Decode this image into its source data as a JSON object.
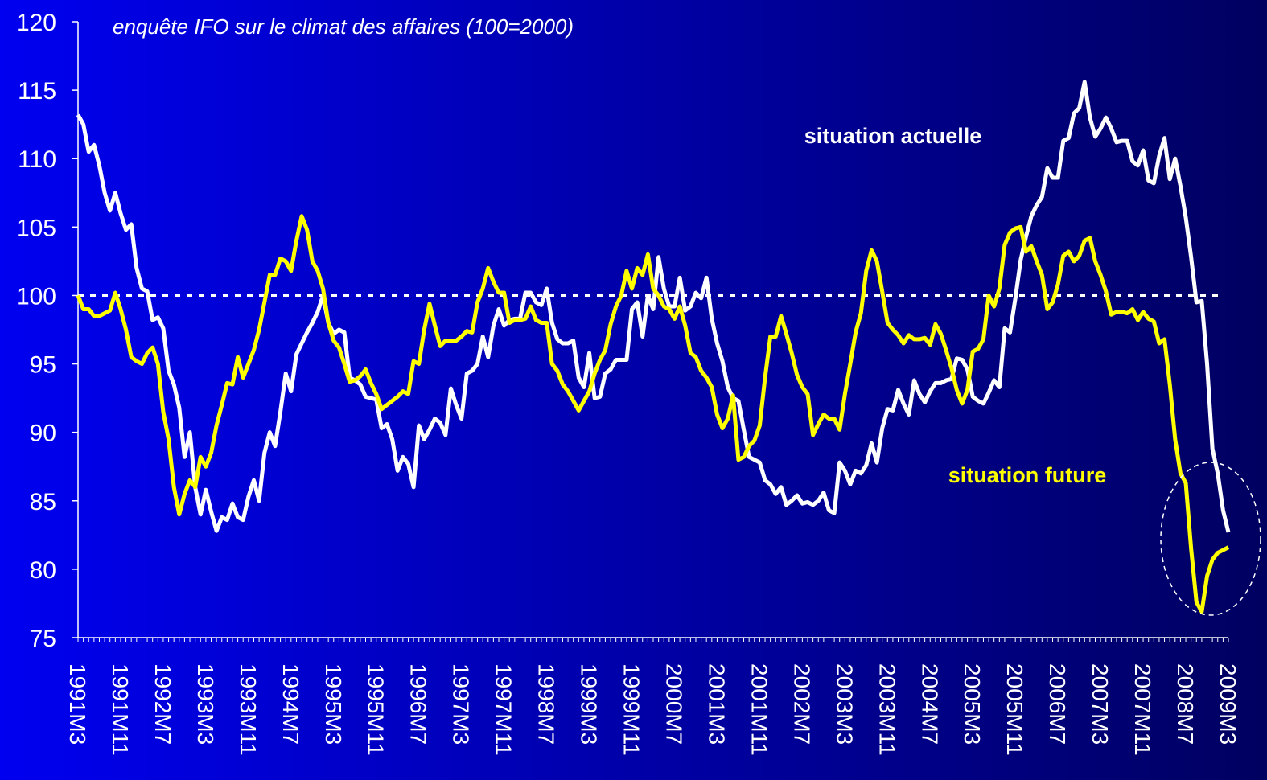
{
  "chart_data": {
    "type": "line",
    "title": "enquête IFO sur le climat des affaires (100=2000)",
    "categories": [
      "1991M3",
      null,
      null,
      null,
      null,
      null,
      null,
      null,
      "1991M11",
      null,
      null,
      null,
      null,
      null,
      null,
      null,
      "1992M7",
      null,
      null,
      null,
      null,
      null,
      null,
      null,
      "1993M3",
      null,
      null,
      null,
      null,
      null,
      null,
      null,
      "1993M11",
      null,
      null,
      null,
      null,
      null,
      null,
      null,
      "1994M7",
      null,
      null,
      null,
      null,
      null,
      null,
      null,
      "1995M3",
      null,
      null,
      null,
      null,
      null,
      null,
      null,
      "1995M11",
      null,
      null,
      null,
      null,
      null,
      null,
      null,
      "1996M7",
      null,
      null,
      null,
      null,
      null,
      null,
      null,
      "1997M3",
      null,
      null,
      null,
      null,
      null,
      null,
      null,
      "1997M11",
      null,
      null,
      null,
      null,
      null,
      null,
      null,
      "1998M7",
      null,
      null,
      null,
      null,
      null,
      null,
      null,
      "1999M3",
      null,
      null,
      null,
      null,
      null,
      null,
      null,
      "1999M11",
      null,
      null,
      null,
      null,
      null,
      null,
      null,
      "2000M7",
      null,
      null,
      null,
      null,
      null,
      null,
      null,
      "2001M3",
      null,
      null,
      null,
      null,
      null,
      null,
      null,
      "2001M11",
      null,
      null,
      null,
      null,
      null,
      null,
      null,
      "2002M7",
      null,
      null,
      null,
      null,
      null,
      null,
      null,
      "2003M3",
      null,
      null,
      null,
      null,
      null,
      null,
      null,
      "2003M11",
      null,
      null,
      null,
      null,
      null,
      null,
      null,
      "2004M7",
      null,
      null,
      null,
      null,
      null,
      null,
      null,
      "2005M3",
      null,
      null,
      null,
      null,
      null,
      null,
      null,
      "2005M11",
      null,
      null,
      null,
      null,
      null,
      null,
      null,
      "2006M7",
      null,
      null,
      null,
      null,
      null,
      null,
      null,
      "2007M3",
      null,
      null,
      null,
      null,
      null,
      null,
      null,
      "2007M11",
      null,
      null,
      null,
      null,
      null,
      null,
      null,
      "2008M7",
      null,
      null,
      null,
      null,
      null,
      null,
      null,
      "2009M3"
    ],
    "series": [
      {
        "name": "situation actuelle",
        "color": "#ffffff",
        "values": [
          113.2,
          112.5,
          110.5,
          111,
          109.5,
          107.5,
          106.2,
          107.5,
          106,
          104.8,
          105.2,
          102,
          100.5,
          100.3,
          98.2,
          98.4,
          97.6,
          94.5,
          93.5,
          91.8,
          88.2,
          90,
          86,
          84,
          85.8,
          84.2,
          82.8,
          83.8,
          83.6,
          84.8,
          83.8,
          83.6,
          85.3,
          86.5,
          85,
          88.5,
          90,
          89,
          91.5,
          94.3,
          93,
          95.7,
          96.5,
          97.3,
          98,
          98.8,
          100,
          98,
          97.2,
          97.5,
          97.3,
          94,
          93.8,
          93.5,
          92.6,
          92.5,
          92.4,
          90.3,
          90.6,
          89.5,
          87.2,
          88.2,
          87.7,
          86,
          90.5,
          89.5,
          90.2,
          91,
          90.7,
          89.8,
          93.2,
          92,
          91,
          94.3,
          94.5,
          95,
          97,
          95.5,
          97.8,
          99,
          97.8,
          98.2,
          98.3,
          98.3,
          100.2,
          100.2,
          99.5,
          99.3,
          100.5,
          98,
          96.8,
          96.5,
          96.5,
          96.7,
          94,
          93.3,
          95.8,
          92.5,
          92.6,
          94.3,
          94.6,
          95.3,
          95.3,
          95.3,
          99,
          99.5,
          97,
          100,
          99,
          102.8,
          100.5,
          99.2,
          99.2,
          101.3,
          98.9,
          99.2,
          100.2,
          99.8,
          101.3,
          98.3,
          96.5,
          95.2,
          93.3,
          92.5,
          92.3,
          90.2,
          88.2,
          88,
          87.8,
          86.5,
          86.2,
          85.5,
          86,
          84.7,
          85,
          85.4,
          84.8,
          84.9,
          84.7,
          85,
          85.6,
          84.3,
          84.1,
          87.8,
          87.2,
          86.2,
          87.2,
          87,
          87.6,
          89.2,
          87.8,
          90.3,
          91.7,
          91.6,
          93.1,
          92.1,
          91.3,
          93.8,
          92.8,
          92.2,
          93,
          93.6,
          93.6,
          93.8,
          93.9,
          95.4,
          95.3,
          94.6,
          92.6,
          92.3,
          92.1,
          92.9,
          93.8,
          93.3,
          97.6,
          97.3,
          99.8,
          102.6,
          104.3,
          105.8,
          106.6,
          107.2,
          109.3,
          108.6,
          108.6,
          111.3,
          111.5,
          113.3,
          113.7,
          115.6,
          113,
          111.6,
          112.2,
          113,
          112.2,
          111.2,
          111.3,
          111.3,
          109.8,
          109.5,
          110.6,
          108.4,
          108.2,
          110.2,
          111.5,
          108.5,
          110,
          108,
          105.7,
          102.8,
          99.5,
          99.6,
          95,
          88.8,
          87,
          84.3,
          82.7
        ]
      },
      {
        "name": "situation future",
        "color": "#ffff00",
        "values": [
          100,
          99,
          99,
          98.5,
          98.5,
          98.7,
          98.9,
          100.2,
          99,
          97.5,
          95.5,
          95.2,
          95,
          95.8,
          96.2,
          95,
          91.5,
          89.5,
          86,
          84,
          85.5,
          86.5,
          86,
          88.2,
          87.5,
          88.5,
          90.5,
          92,
          93.6,
          93.5,
          95.5,
          94,
          95,
          96,
          97.5,
          99.5,
          101.5,
          101.5,
          102.7,
          102.5,
          101.8,
          104,
          105.8,
          104.8,
          102.5,
          101.8,
          100.5,
          98,
          96.7,
          96.2,
          95,
          93.7,
          93.8,
          94.1,
          94.6,
          93.6,
          92.8,
          91.7,
          92,
          92.3,
          92.6,
          93,
          92.8,
          95.2,
          95,
          97.5,
          99.4,
          97.8,
          96.3,
          96.7,
          96.7,
          96.7,
          97,
          97.4,
          97.3,
          99.5,
          100.5,
          102,
          101,
          100.2,
          100.2,
          98,
          98.2,
          98.2,
          98.3,
          99.2,
          98.2,
          98,
          98,
          95,
          94.5,
          93.5,
          93,
          92.3,
          91.6,
          92.3,
          93,
          94.3,
          95.3,
          96,
          97.9,
          99.2,
          100,
          101.8,
          100.5,
          102,
          101.5,
          103,
          100.5,
          100,
          99.2,
          99,
          98.3,
          99.2,
          97.8,
          95.8,
          95.5,
          94.5,
          94,
          93.3,
          91.3,
          90.3,
          91,
          92.7,
          88,
          88.2,
          89,
          89.4,
          90.5,
          94,
          97,
          97,
          98.5,
          97.2,
          95.8,
          94.2,
          93.3,
          92.8,
          89.8,
          90.6,
          91.3,
          91,
          91,
          90.2,
          92.8,
          95,
          97.3,
          98.7,
          101.8,
          103.3,
          102.5,
          100.3,
          98,
          97.5,
          97.1,
          96.5,
          97.1,
          96.8,
          96.8,
          96.9,
          96.4,
          97.9,
          97.2,
          96,
          94.7,
          93.1,
          92.1,
          93.1,
          95.9,
          96.1,
          96.8,
          100,
          99.2,
          100.5,
          103.7,
          104.6,
          104.9,
          105,
          103.2,
          103.6,
          102.5,
          101.5,
          99,
          99.5,
          100.8,
          102.9,
          103.2,
          102.5,
          102.9,
          104,
          104.2,
          102.5,
          101.5,
          100.3,
          98.6,
          98.8,
          98.8,
          98.7,
          99,
          98.2,
          98.8,
          98.3,
          98.1,
          96.5,
          96.8,
          93.5,
          89.5,
          87,
          86.3,
          81.5,
          77.6,
          76.9,
          79.5,
          80.7,
          81.2,
          81.4,
          81.6
        ]
      }
    ],
    "ylim": [
      75,
      120
    ],
    "yticks": [
      75,
      80,
      85,
      90,
      95,
      100,
      105,
      110,
      115,
      120
    ],
    "reference_line": 100
  }
}
